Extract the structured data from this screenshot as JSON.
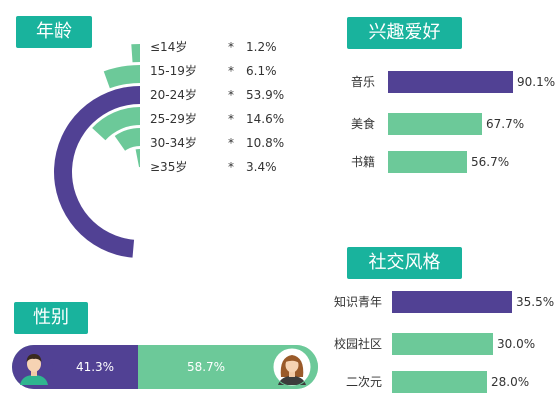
{
  "sections": {
    "age": "年龄",
    "gender": "性别",
    "hobby": "兴趣爱好",
    "social": "社交风格"
  },
  "colors": {
    "purple": "#514194",
    "green": "#6cc999",
    "tag": "#19b39d"
  },
  "chart_data": [
    {
      "type": "radial_bar",
      "title": "年龄",
      "categories": [
        "≤14岁",
        "15-19岁",
        "20-24岁",
        "25-29岁",
        "30-34岁",
        "≥35岁"
      ],
      "values": [
        1.2,
        6.1,
        53.9,
        14.6,
        10.8,
        3.4
      ],
      "labels": [
        "1.2%",
        "6.1%",
        "53.9%",
        "14.6%",
        "10.8%",
        "3.4%"
      ],
      "separator": "*",
      "highlight": "20-24岁"
    },
    {
      "type": "bar",
      "title": "兴趣爱好",
      "categories": [
        "音乐",
        "美食",
        "书籍"
      ],
      "values": [
        90.1,
        67.7,
        56.7
      ],
      "labels": [
        "90.1%",
        "67.7%",
        "56.7%"
      ]
    },
    {
      "type": "bar",
      "title": "社交风格",
      "categories": [
        "知识青年",
        "校园社区",
        "二次元"
      ],
      "values": [
        35.5,
        30.0,
        28.0
      ],
      "labels": [
        "35.5%",
        "30.0%",
        "28.0%"
      ]
    },
    {
      "type": "stacked_bar",
      "title": "性别",
      "categories": [
        "男",
        "女"
      ],
      "values": [
        41.3,
        58.7
      ],
      "labels": [
        "41.3%",
        "58.7%"
      ]
    }
  ]
}
